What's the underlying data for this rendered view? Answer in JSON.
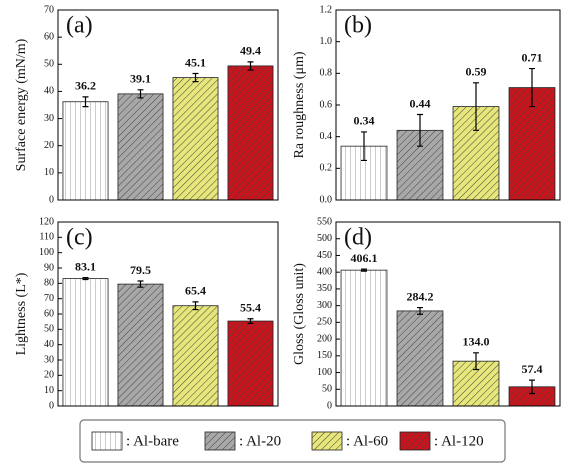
{
  "chart_data": [
    {
      "type": "bar",
      "title": "(a)",
      "ylabel": "Surface energy (mN/m)",
      "values": [
        36.2,
        39.1,
        45.1,
        49.4
      ],
      "errors": [
        1.8,
        1.5,
        1.5,
        1.5
      ],
      "ylim": [
        0,
        70
      ],
      "yticks": [
        0,
        10,
        20,
        30,
        40,
        50,
        60,
        70
      ]
    },
    {
      "type": "bar",
      "title": "(b)",
      "ylabel": "Ra roughness (μm)",
      "values": [
        0.34,
        0.44,
        0.59,
        0.71
      ],
      "errors": [
        0.09,
        0.1,
        0.15,
        0.12
      ],
      "ylim": [
        0,
        1.2
      ],
      "yticks": [
        {
          "value": 0,
          "label": "0.0"
        },
        0.2,
        0.4,
        0.6,
        0.8,
        {
          "value": 1,
          "label": "1.0"
        },
        1.2
      ]
    },
    {
      "type": "bar",
      "title": "(c)",
      "ylabel": "Lightness (L*)",
      "values": [
        83.1,
        79.5,
        65.4,
        55.4
      ],
      "errors": [
        0.6,
        2,
        2.5,
        1.5
      ],
      "ylim": [
        0,
        120
      ],
      "yticks": [
        0,
        10,
        20,
        30,
        40,
        50,
        60,
        70,
        80,
        90,
        100,
        110,
        120
      ]
    },
    {
      "type": "bar",
      "title": "(d)",
      "ylabel": "Gloss (Gloss unit)",
      "values": [
        406.1,
        284.2,
        134,
        57.4
      ],
      "value_labels": [
        "406.1",
        "284.2",
        "134.0",
        "57.4"
      ],
      "errors": [
        3,
        10,
        25,
        20
      ],
      "ylim": [
        0,
        550
      ],
      "yticks": [
        0,
        50,
        100,
        150,
        200,
        250,
        300,
        350,
        400,
        450,
        500,
        550
      ]
    }
  ],
  "legend": {
    "entries": [
      {
        "name": ": Al-bare",
        "color": "#ffffff",
        "hatch": "vertical"
      },
      {
        "name": ": Al-20",
        "color": "#a8a8a8",
        "hatch": "diagonal"
      },
      {
        "name": ": Al-60",
        "color": "#e6e67a",
        "hatch": "diagonal"
      },
      {
        "name": ": Al-120",
        "color": "#c8141c",
        "hatch": "diagonal"
      }
    ]
  }
}
